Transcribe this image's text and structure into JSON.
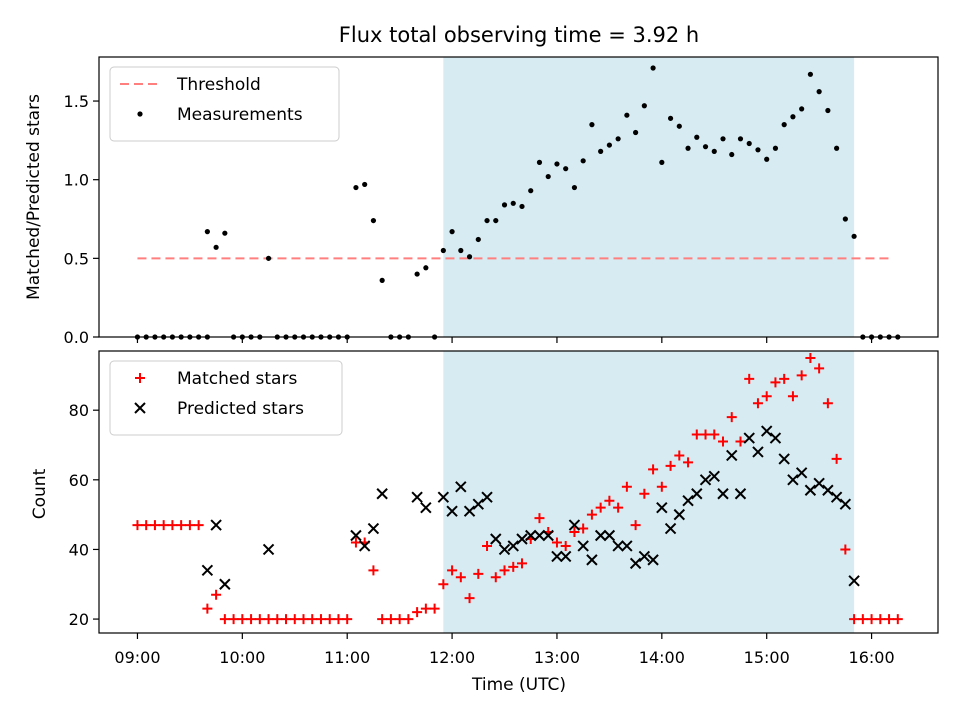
{
  "chart_data": [
    {
      "type": "scatter",
      "title": "Flux total observing time = 3.92 h",
      "xlabel": "",
      "ylabel": "Matched/Predicted stars",
      "ylim": [
        0,
        1.78
      ],
      "xlim": [
        "08:38",
        "16:38"
      ],
      "yticks": [
        0.0,
        0.5,
        1.0,
        1.5
      ],
      "ytick_labels": [
        "0.0",
        "0.5",
        "1.0",
        "1.5"
      ],
      "shaded_span": [
        "11:55",
        "15:50"
      ],
      "legend_position": "top-left",
      "threshold": {
        "name": "Threshold",
        "y": 0.5,
        "x_range": [
          "09:00",
          "16:12"
        ],
        "color": "#ff7f7f"
      },
      "series": [
        {
          "name": "Measurements",
          "color": "#000000",
          "marker": "dot",
          "points": [
            [
              "09:00",
              0
            ],
            [
              "09:05",
              0
            ],
            [
              "09:10",
              0
            ],
            [
              "09:15",
              0
            ],
            [
              "09:20",
              0
            ],
            [
              "09:25",
              0
            ],
            [
              "09:30",
              0
            ],
            [
              "09:35",
              0
            ],
            [
              "09:40",
              0
            ],
            [
              "09:40",
              0.67
            ],
            [
              "09:45",
              0.57
            ],
            [
              "09:50",
              0.66
            ],
            [
              "09:55",
              0
            ],
            [
              "10:00",
              0
            ],
            [
              "10:05",
              0
            ],
            [
              "10:10",
              0
            ],
            [
              "10:15",
              0.5
            ],
            [
              "10:20",
              0
            ],
            [
              "10:25",
              0
            ],
            [
              "10:30",
              0
            ],
            [
              "10:35",
              0
            ],
            [
              "10:40",
              0
            ],
            [
              "10:45",
              0
            ],
            [
              "10:50",
              0
            ],
            [
              "10:55",
              0
            ],
            [
              "11:00",
              0
            ],
            [
              "11:05",
              0.95
            ],
            [
              "11:10",
              0.97
            ],
            [
              "11:15",
              0.74
            ],
            [
              "11:20",
              0.36
            ],
            [
              "11:25",
              0
            ],
            [
              "11:30",
              0
            ],
            [
              "11:35",
              0
            ],
            [
              "11:40",
              0.4
            ],
            [
              "11:45",
              0.44
            ],
            [
              "11:50",
              0
            ],
            [
              "11:55",
              0.55
            ],
            [
              "12:00",
              0.67
            ],
            [
              "12:05",
              0.55
            ],
            [
              "12:10",
              0.51
            ],
            [
              "12:15",
              0.62
            ],
            [
              "12:20",
              0.74
            ],
            [
              "12:25",
              0.74
            ],
            [
              "12:30",
              0.84
            ],
            [
              "12:35",
              0.85
            ],
            [
              "12:40",
              0.83
            ],
            [
              "12:45",
              0.93
            ],
            [
              "12:50",
              1.11
            ],
            [
              "12:55",
              1.02
            ],
            [
              "13:00",
              1.1
            ],
            [
              "13:05",
              1.07
            ],
            [
              "13:10",
              0.95
            ],
            [
              "13:15",
              1.12
            ],
            [
              "13:20",
              1.35
            ],
            [
              "13:25",
              1.18
            ],
            [
              "13:30",
              1.22
            ],
            [
              "13:35",
              1.26
            ],
            [
              "13:40",
              1.41
            ],
            [
              "13:45",
              1.3
            ],
            [
              "13:50",
              1.47
            ],
            [
              "13:55",
              1.71
            ],
            [
              "14:00",
              1.11
            ],
            [
              "14:05",
              1.39
            ],
            [
              "14:10",
              1.34
            ],
            [
              "14:15",
              1.2
            ],
            [
              "14:20",
              1.27
            ],
            [
              "14:25",
              1.21
            ],
            [
              "14:30",
              1.18
            ],
            [
              "14:35",
              1.26
            ],
            [
              "14:40",
              1.16
            ],
            [
              "14:45",
              1.26
            ],
            [
              "14:50",
              1.23
            ],
            [
              "14:55",
              1.19
            ],
            [
              "15:00",
              1.13
            ],
            [
              "15:05",
              1.2
            ],
            [
              "15:10",
              1.35
            ],
            [
              "15:15",
              1.4
            ],
            [
              "15:20",
              1.45
            ],
            [
              "15:25",
              1.67
            ],
            [
              "15:30",
              1.56
            ],
            [
              "15:35",
              1.44
            ],
            [
              "15:40",
              1.2
            ],
            [
              "15:45",
              0.75
            ],
            [
              "15:50",
              0.64
            ],
            [
              "15:55",
              0
            ],
            [
              "16:00",
              0
            ],
            [
              "16:05",
              0
            ],
            [
              "16:10",
              0
            ],
            [
              "16:15",
              0
            ]
          ]
        }
      ]
    },
    {
      "type": "scatter",
      "title": "",
      "xlabel": "Time (UTC)",
      "ylabel": "Count",
      "ylim": [
        16,
        97
      ],
      "xlim": [
        "08:38",
        "16:38"
      ],
      "yticks": [
        20,
        40,
        60,
        80
      ],
      "ytick_labels": [
        "20",
        "40",
        "60",
        "80"
      ],
      "xticks": [
        "09:00",
        "10:00",
        "11:00",
        "12:00",
        "13:00",
        "14:00",
        "15:00",
        "16:00"
      ],
      "xtick_labels": [
        "09:00",
        "10:00",
        "11:00",
        "12:00",
        "13:00",
        "14:00",
        "15:00",
        "16:00"
      ],
      "shaded_span": [
        "11:55",
        "15:50"
      ],
      "legend_position": "top-left",
      "series": [
        {
          "name": "Matched stars",
          "color": "#ff0000",
          "marker": "plus",
          "points": [
            [
              "09:00",
              47
            ],
            [
              "09:05",
              47
            ],
            [
              "09:10",
              47
            ],
            [
              "09:15",
              47
            ],
            [
              "09:20",
              47
            ],
            [
              "09:25",
              47
            ],
            [
              "09:30",
              47
            ],
            [
              "09:35",
              47
            ],
            [
              "09:40",
              23
            ],
            [
              "09:45",
              27
            ],
            [
              "09:50",
              20
            ],
            [
              "09:55",
              20
            ],
            [
              "10:00",
              20
            ],
            [
              "10:05",
              20
            ],
            [
              "10:10",
              20
            ],
            [
              "10:15",
              20
            ],
            [
              "10:20",
              20
            ],
            [
              "10:25",
              20
            ],
            [
              "10:30",
              20
            ],
            [
              "10:35",
              20
            ],
            [
              "10:40",
              20
            ],
            [
              "10:45",
              20
            ],
            [
              "10:50",
              20
            ],
            [
              "10:55",
              20
            ],
            [
              "11:00",
              20
            ],
            [
              "11:05",
              42
            ],
            [
              "11:10",
              42
            ],
            [
              "11:15",
              34
            ],
            [
              "11:20",
              20
            ],
            [
              "11:25",
              20
            ],
            [
              "11:30",
              20
            ],
            [
              "11:35",
              20
            ],
            [
              "11:40",
              22
            ],
            [
              "11:45",
              23
            ],
            [
              "11:50",
              23
            ],
            [
              "11:55",
              30
            ],
            [
              "12:00",
              34
            ],
            [
              "12:05",
              32
            ],
            [
              "12:10",
              26
            ],
            [
              "12:15",
              33
            ],
            [
              "12:20",
              41
            ],
            [
              "12:25",
              32
            ],
            [
              "12:30",
              34
            ],
            [
              "12:35",
              35
            ],
            [
              "12:40",
              36
            ],
            [
              "12:45",
              43
            ],
            [
              "12:50",
              49
            ],
            [
              "12:55",
              45
            ],
            [
              "13:00",
              42
            ],
            [
              "13:05",
              41
            ],
            [
              "13:10",
              45
            ],
            [
              "13:15",
              46
            ],
            [
              "13:20",
              50
            ],
            [
              "13:25",
              52
            ],
            [
              "13:30",
              54
            ],
            [
              "13:35",
              52
            ],
            [
              "13:40",
              58
            ],
            [
              "13:45",
              47
            ],
            [
              "13:50",
              56
            ],
            [
              "13:55",
              63
            ],
            [
              "14:00",
              58
            ],
            [
              "14:05",
              64
            ],
            [
              "14:10",
              67
            ],
            [
              "14:15",
              65
            ],
            [
              "14:20",
              73
            ],
            [
              "14:25",
              73
            ],
            [
              "14:30",
              73
            ],
            [
              "14:35",
              71
            ],
            [
              "14:40",
              78
            ],
            [
              "14:45",
              71
            ],
            [
              "14:50",
              89
            ],
            [
              "14:55",
              82
            ],
            [
              "15:00",
              84
            ],
            [
              "15:05",
              88
            ],
            [
              "15:10",
              89
            ],
            [
              "15:15",
              84
            ],
            [
              "15:20",
              90
            ],
            [
              "15:25",
              95
            ],
            [
              "15:30",
              92
            ],
            [
              "15:35",
              82
            ],
            [
              "15:40",
              66
            ],
            [
              "15:45",
              40
            ],
            [
              "15:50",
              20
            ],
            [
              "15:55",
              20
            ],
            [
              "16:00",
              20
            ],
            [
              "16:05",
              20
            ],
            [
              "16:10",
              20
            ],
            [
              "16:15",
              20
            ]
          ]
        },
        {
          "name": "Predicted stars",
          "color": "#000000",
          "marker": "x",
          "points": [
            [
              "09:40",
              34
            ],
            [
              "09:45",
              47
            ],
            [
              "09:50",
              30
            ],
            [
              "10:15",
              40
            ],
            [
              "11:05",
              44
            ],
            [
              "11:10",
              41
            ],
            [
              "11:15",
              46
            ],
            [
              "11:20",
              56
            ],
            [
              "11:40",
              55
            ],
            [
              "11:45",
              52
            ],
            [
              "11:55",
              55
            ],
            [
              "12:00",
              51
            ],
            [
              "12:05",
              58
            ],
            [
              "12:10",
              51
            ],
            [
              "12:15",
              53
            ],
            [
              "12:20",
              55
            ],
            [
              "12:25",
              43
            ],
            [
              "12:30",
              40
            ],
            [
              "12:35",
              41
            ],
            [
              "12:40",
              43
            ],
            [
              "12:45",
              44
            ],
            [
              "12:50",
              44
            ],
            [
              "12:55",
              44
            ],
            [
              "13:00",
              38
            ],
            [
              "13:05",
              38
            ],
            [
              "13:10",
              47
            ],
            [
              "13:15",
              41
            ],
            [
              "13:20",
              37
            ],
            [
              "13:25",
              44
            ],
            [
              "13:30",
              44
            ],
            [
              "13:35",
              41
            ],
            [
              "13:40",
              41
            ],
            [
              "13:45",
              36
            ],
            [
              "13:50",
              38
            ],
            [
              "13:55",
              37
            ],
            [
              "14:00",
              52
            ],
            [
              "14:05",
              46
            ],
            [
              "14:10",
              50
            ],
            [
              "14:15",
              54
            ],
            [
              "14:20",
              56
            ],
            [
              "14:25",
              60
            ],
            [
              "14:30",
              61
            ],
            [
              "14:35",
              56
            ],
            [
              "14:40",
              67
            ],
            [
              "14:45",
              56
            ],
            [
              "14:50",
              72
            ],
            [
              "14:55",
              68
            ],
            [
              "15:00",
              74
            ],
            [
              "15:05",
              72
            ],
            [
              "15:10",
              66
            ],
            [
              "15:15",
              60
            ],
            [
              "15:20",
              62
            ],
            [
              "15:25",
              57
            ],
            [
              "15:30",
              59
            ],
            [
              "15:35",
              57
            ],
            [
              "15:40",
              55
            ],
            [
              "15:45",
              53
            ],
            [
              "15:50",
              31
            ]
          ]
        }
      ]
    }
  ]
}
